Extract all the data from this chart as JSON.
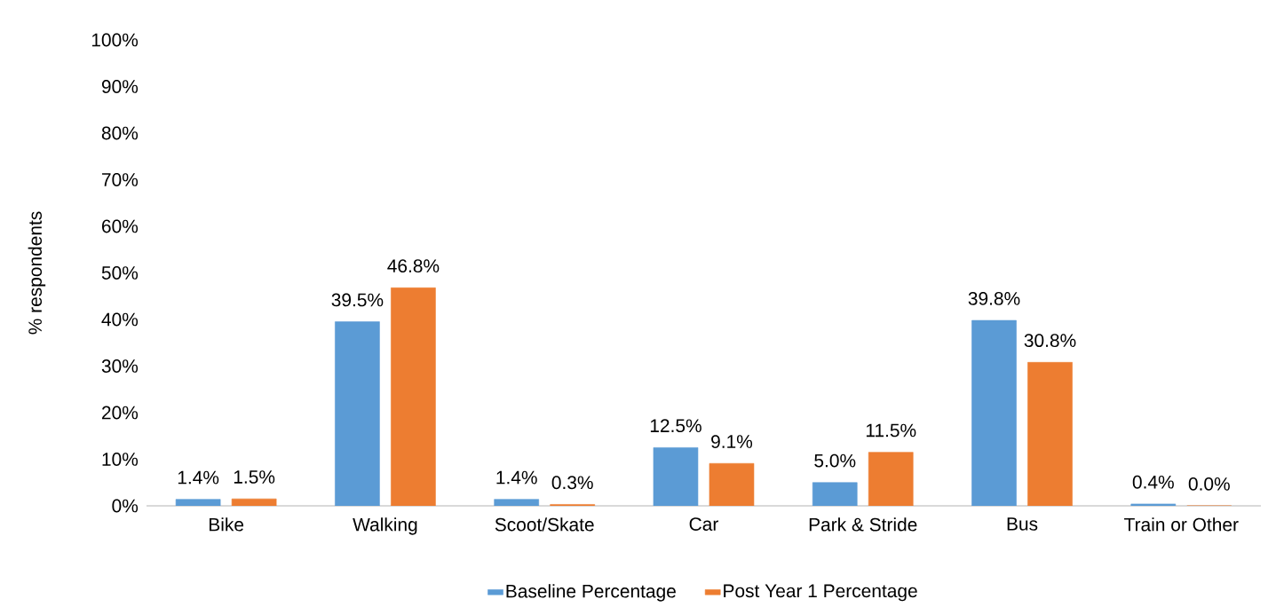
{
  "chart_data": {
    "type": "bar",
    "ylabel": "% respondents",
    "categories": [
      "Bike",
      "Walking",
      "Scoot/Skate",
      "Car",
      "Park & Stride",
      "Bus",
      "Train or Other"
    ],
    "series": [
      {
        "name": "Baseline Percentage",
        "color": "#5b9bd5",
        "values": [
          1.4,
          39.5,
          1.4,
          12.5,
          5.0,
          39.8,
          0.4
        ],
        "value_labels": [
          "1.4%",
          "39.5%",
          "1.4%",
          "12.5%",
          "5.0%",
          "39.8%",
          "0.4%"
        ]
      },
      {
        "name": "Post Year 1 Percentage",
        "color": "#ed7d31",
        "values": [
          1.5,
          46.8,
          0.3,
          9.1,
          11.5,
          30.8,
          0.0
        ],
        "value_labels": [
          "1.5%",
          "46.8%",
          "0.3%",
          "9.1%",
          "11.5%",
          "30.8%",
          "0.0%"
        ]
      }
    ],
    "ylim": [
      0,
      100
    ],
    "yticks": [
      {
        "value": 0,
        "label": "0%"
      },
      {
        "value": 10,
        "label": "10%"
      },
      {
        "value": 20,
        "label": "20%"
      },
      {
        "value": 30,
        "label": "30%"
      },
      {
        "value": 40,
        "label": "40%"
      },
      {
        "value": 50,
        "label": "50%"
      },
      {
        "value": 60,
        "label": "60%"
      },
      {
        "value": 70,
        "label": "70%"
      },
      {
        "value": 80,
        "label": "80%"
      },
      {
        "value": 90,
        "label": "90%"
      },
      {
        "value": 100,
        "label": "100%"
      }
    ],
    "legend": "bottom"
  }
}
